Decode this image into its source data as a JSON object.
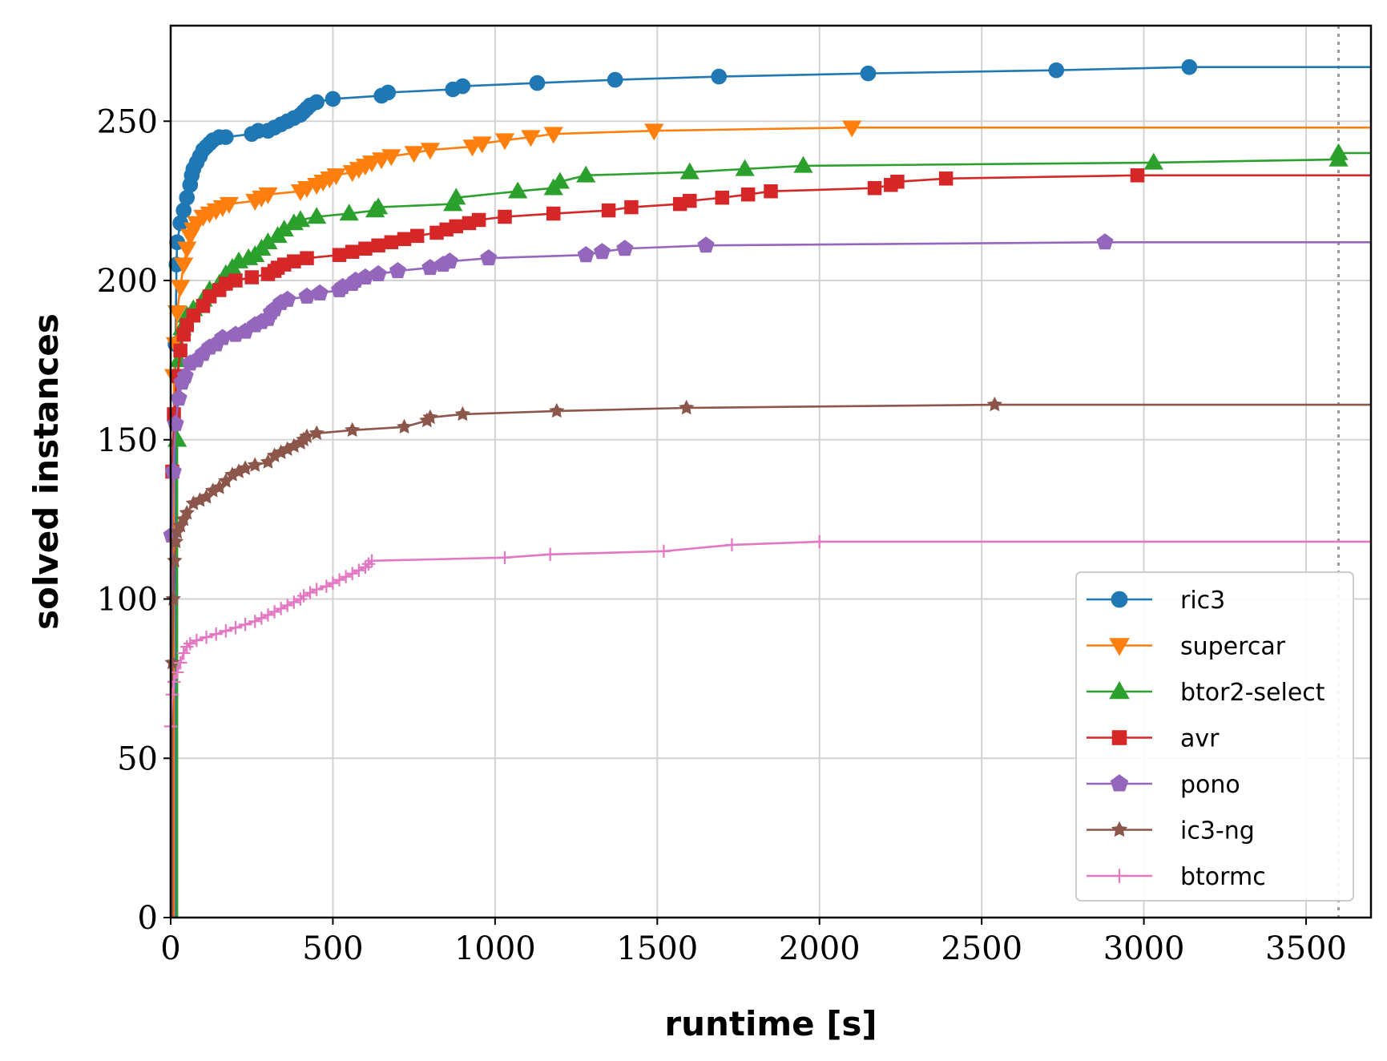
{
  "chart_data": {
    "type": "line",
    "title": "",
    "xlabel": "runtime [s]",
    "ylabel": "solved instances",
    "xlim": [
      0,
      3700
    ],
    "ylim": [
      0,
      280
    ],
    "xticks": [
      0,
      500,
      1000,
      1500,
      2000,
      2500,
      3000,
      3500
    ],
    "yticks": [
      0,
      50,
      100,
      150,
      200,
      250
    ],
    "grid": true,
    "timeout_line_x": 3600,
    "legend_position": "lower-right",
    "series": [
      {
        "name": "ric3",
        "color": "#1f77b4",
        "marker": "circle",
        "points": [
          [
            15,
            0
          ],
          [
            15,
            180
          ],
          [
            18,
            205
          ],
          [
            20,
            212
          ],
          [
            30,
            218
          ],
          [
            40,
            222
          ],
          [
            50,
            226
          ],
          [
            60,
            230
          ],
          [
            65,
            233
          ],
          [
            70,
            235
          ],
          [
            80,
            237
          ],
          [
            90,
            239
          ],
          [
            100,
            241
          ],
          [
            110,
            242
          ],
          [
            120,
            243
          ],
          [
            130,
            244
          ],
          [
            150,
            245
          ],
          [
            170,
            245
          ],
          [
            250,
            246
          ],
          [
            270,
            247
          ],
          [
            300,
            247
          ],
          [
            320,
            248
          ],
          [
            340,
            249
          ],
          [
            360,
            250
          ],
          [
            380,
            251
          ],
          [
            400,
            252
          ],
          [
            410,
            253
          ],
          [
            420,
            254
          ],
          [
            430,
            255
          ],
          [
            450,
            256
          ],
          [
            500,
            257
          ],
          [
            650,
            258
          ],
          [
            670,
            259
          ],
          [
            870,
            260
          ],
          [
            900,
            261
          ],
          [
            1130,
            262
          ],
          [
            1370,
            263
          ],
          [
            1690,
            264
          ],
          [
            2150,
            265
          ],
          [
            2730,
            266
          ],
          [
            3140,
            267
          ],
          [
            3700,
            267
          ]
        ]
      },
      {
        "name": "supercar",
        "color": "#ff7f0e",
        "marker": "triangle-down",
        "points": [
          [
            10,
            0
          ],
          [
            10,
            170
          ],
          [
            15,
            180
          ],
          [
            20,
            190
          ],
          [
            30,
            198
          ],
          [
            40,
            205
          ],
          [
            50,
            210
          ],
          [
            60,
            214
          ],
          [
            70,
            216
          ],
          [
            80,
            218
          ],
          [
            100,
            220
          ],
          [
            120,
            221
          ],
          [
            140,
            222
          ],
          [
            160,
            223
          ],
          [
            180,
            224
          ],
          [
            260,
            225
          ],
          [
            280,
            226
          ],
          [
            300,
            227
          ],
          [
            400,
            228
          ],
          [
            420,
            229
          ],
          [
            450,
            230
          ],
          [
            470,
            231
          ],
          [
            490,
            232
          ],
          [
            510,
            233
          ],
          [
            560,
            234
          ],
          [
            580,
            235
          ],
          [
            600,
            236
          ],
          [
            620,
            237
          ],
          [
            650,
            238
          ],
          [
            680,
            239
          ],
          [
            750,
            240
          ],
          [
            800,
            241
          ],
          [
            930,
            242
          ],
          [
            960,
            243
          ],
          [
            1030,
            244
          ],
          [
            1110,
            245
          ],
          [
            1180,
            246
          ],
          [
            1490,
            247
          ],
          [
            2100,
            248
          ],
          [
            3700,
            248
          ]
        ]
      },
      {
        "name": "btor2-select",
        "color": "#2ca02c",
        "marker": "triangle-up",
        "points": [
          [
            20,
            0
          ],
          [
            20,
            150
          ],
          [
            25,
            175
          ],
          [
            35,
            185
          ],
          [
            50,
            189
          ],
          [
            70,
            191
          ],
          [
            100,
            194
          ],
          [
            120,
            197
          ],
          [
            150,
            199
          ],
          [
            170,
            202
          ],
          [
            190,
            204
          ],
          [
            210,
            206
          ],
          [
            240,
            207
          ],
          [
            260,
            208
          ],
          [
            280,
            210
          ],
          [
            300,
            212
          ],
          [
            330,
            214
          ],
          [
            350,
            216
          ],
          [
            380,
            218
          ],
          [
            400,
            219
          ],
          [
            450,
            220
          ],
          [
            550,
            221
          ],
          [
            630,
            222
          ],
          [
            640,
            223
          ],
          [
            870,
            224
          ],
          [
            880,
            226
          ],
          [
            1070,
            228
          ],
          [
            1180,
            229
          ],
          [
            1200,
            231
          ],
          [
            1280,
            233
          ],
          [
            1600,
            234
          ],
          [
            1770,
            235
          ],
          [
            1950,
            236
          ],
          [
            3030,
            237
          ],
          [
            3600,
            238
          ],
          [
            3600,
            240
          ],
          [
            3700,
            240
          ]
        ]
      },
      {
        "name": "avr",
        "color": "#d62728",
        "marker": "square",
        "points": [
          [
            5,
            0
          ],
          [
            5,
            140
          ],
          [
            10,
            158
          ],
          [
            20,
            170
          ],
          [
            30,
            178
          ],
          [
            40,
            183
          ],
          [
            50,
            186
          ],
          [
            70,
            189
          ],
          [
            100,
            192
          ],
          [
            120,
            195
          ],
          [
            150,
            197
          ],
          [
            170,
            199
          ],
          [
            200,
            200
          ],
          [
            250,
            201
          ],
          [
            300,
            202
          ],
          [
            320,
            203
          ],
          [
            330,
            204
          ],
          [
            350,
            205
          ],
          [
            380,
            206
          ],
          [
            420,
            207
          ],
          [
            520,
            208
          ],
          [
            560,
            209
          ],
          [
            600,
            210
          ],
          [
            640,
            211
          ],
          [
            680,
            212
          ],
          [
            720,
            213
          ],
          [
            760,
            214
          ],
          [
            820,
            215
          ],
          [
            850,
            216
          ],
          [
            880,
            217
          ],
          [
            920,
            218
          ],
          [
            950,
            219
          ],
          [
            1030,
            220
          ],
          [
            1180,
            221
          ],
          [
            1350,
            222
          ],
          [
            1420,
            223
          ],
          [
            1570,
            224
          ],
          [
            1600,
            225
          ],
          [
            1700,
            226
          ],
          [
            1780,
            227
          ],
          [
            1850,
            228
          ],
          [
            2170,
            229
          ],
          [
            2220,
            230
          ],
          [
            2240,
            231
          ],
          [
            2390,
            232
          ],
          [
            2980,
            233
          ],
          [
            3700,
            233
          ]
        ]
      },
      {
        "name": "pono",
        "color": "#9467bd",
        "marker": "pentagon",
        "points": [
          [
            3,
            0
          ],
          [
            3,
            120
          ],
          [
            8,
            140
          ],
          [
            15,
            155
          ],
          [
            25,
            163
          ],
          [
            35,
            168
          ],
          [
            45,
            170
          ],
          [
            60,
            174
          ],
          [
            80,
            175
          ],
          [
            100,
            177
          ],
          [
            120,
            179
          ],
          [
            140,
            180
          ],
          [
            160,
            182
          ],
          [
            200,
            183
          ],
          [
            230,
            184
          ],
          [
            260,
            186
          ],
          [
            280,
            187
          ],
          [
            300,
            188
          ],
          [
            310,
            190
          ],
          [
            320,
            191
          ],
          [
            340,
            193
          ],
          [
            360,
            194
          ],
          [
            420,
            195
          ],
          [
            460,
            196
          ],
          [
            520,
            197
          ],
          [
            530,
            198
          ],
          [
            560,
            199
          ],
          [
            570,
            200
          ],
          [
            600,
            201
          ],
          [
            640,
            202
          ],
          [
            700,
            203
          ],
          [
            800,
            204
          ],
          [
            840,
            205
          ],
          [
            860,
            206
          ],
          [
            980,
            207
          ],
          [
            1280,
            208
          ],
          [
            1330,
            209
          ],
          [
            1400,
            210
          ],
          [
            1650,
            211
          ],
          [
            2880,
            212
          ],
          [
            3700,
            212
          ]
        ]
      },
      {
        "name": "ic3-ng",
        "color": "#8c564b",
        "marker": "star",
        "points": [
          [
            5,
            0
          ],
          [
            5,
            80
          ],
          [
            8,
            100
          ],
          [
            12,
            112
          ],
          [
            16,
            118
          ],
          [
            20,
            121
          ],
          [
            30,
            123
          ],
          [
            40,
            125
          ],
          [
            50,
            127
          ],
          [
            70,
            130
          ],
          [
            90,
            131
          ],
          [
            110,
            132
          ],
          [
            130,
            134
          ],
          [
            150,
            135
          ],
          [
            170,
            137
          ],
          [
            190,
            139
          ],
          [
            210,
            140
          ],
          [
            230,
            141
          ],
          [
            260,
            142
          ],
          [
            300,
            143
          ],
          [
            320,
            145
          ],
          [
            340,
            146
          ],
          [
            360,
            147
          ],
          [
            380,
            148
          ],
          [
            400,
            149
          ],
          [
            410,
            150
          ],
          [
            420,
            151
          ],
          [
            450,
            152
          ],
          [
            560,
            153
          ],
          [
            720,
            154
          ],
          [
            790,
            156
          ],
          [
            800,
            157
          ],
          [
            900,
            158
          ],
          [
            1190,
            159
          ],
          [
            1590,
            160
          ],
          [
            2540,
            161
          ],
          [
            3700,
            161
          ]
        ]
      },
      {
        "name": "btormc",
        "color": "#e377c2",
        "marker": "plus",
        "points": [
          [
            0,
            0
          ],
          [
            0,
            60
          ],
          [
            5,
            70
          ],
          [
            10,
            74
          ],
          [
            20,
            77
          ],
          [
            30,
            80
          ],
          [
            40,
            83
          ],
          [
            50,
            85
          ],
          [
            60,
            86
          ],
          [
            80,
            87
          ],
          [
            110,
            88
          ],
          [
            140,
            89
          ],
          [
            170,
            90
          ],
          [
            200,
            91
          ],
          [
            230,
            92
          ],
          [
            260,
            93
          ],
          [
            280,
            94
          ],
          [
            300,
            95
          ],
          [
            320,
            96
          ],
          [
            340,
            97
          ],
          [
            360,
            98
          ],
          [
            380,
            99
          ],
          [
            400,
            100
          ],
          [
            410,
            101
          ],
          [
            430,
            102
          ],
          [
            450,
            103
          ],
          [
            480,
            104
          ],
          [
            500,
            105
          ],
          [
            520,
            106
          ],
          [
            540,
            107
          ],
          [
            560,
            108
          ],
          [
            580,
            109
          ],
          [
            600,
            110
          ],
          [
            610,
            111
          ],
          [
            620,
            112
          ],
          [
            1030,
            113
          ],
          [
            1170,
            114
          ],
          [
            1520,
            115
          ],
          [
            1730,
            117
          ],
          [
            2000,
            118
          ],
          [
            3700,
            118
          ]
        ]
      }
    ]
  }
}
